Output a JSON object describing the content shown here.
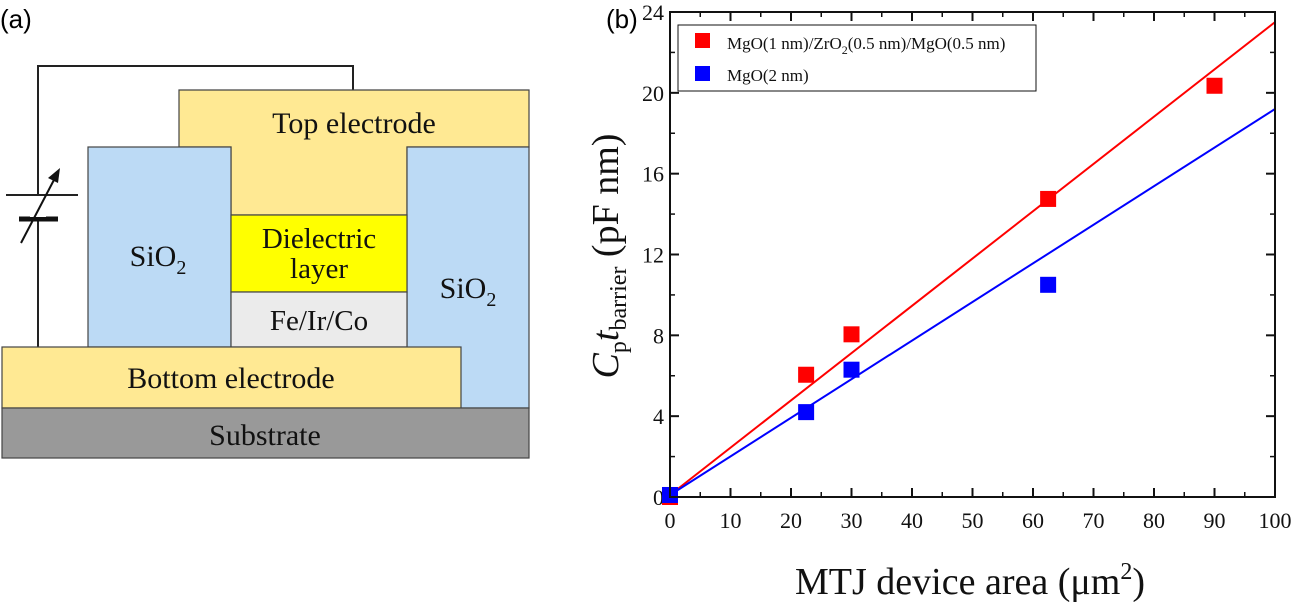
{
  "panels": {
    "a": "(a)",
    "b": "(b)"
  },
  "diagram": {
    "top_electrode": "Top electrode",
    "sio2_left": {
      "base": "SiO",
      "sub": "2"
    },
    "sio2_right": {
      "base": "SiO",
      "sub": "2"
    },
    "dielectric_line1": "Dielectric",
    "dielectric_line2": "layer",
    "ferromagnet": "Fe/Ir/Co",
    "bottom_electrode": "Bottom electrode",
    "substrate": "Substrate",
    "colors": {
      "electrode": "#ffe993",
      "sio2": "#bcdaf5",
      "dielectric": "#ffff00",
      "ferromagnet": "#ebebeb",
      "substrate": "#999999"
    }
  },
  "chart_data": {
    "type": "scatter",
    "xlabel": {
      "main": "MTJ device area (μm",
      "sup": "2",
      "end": ")"
    },
    "ylabel": {
      "c": "C",
      "c_sub": "p",
      "t": "t",
      "t_sub": "barrier",
      "unit": " (pF nm)"
    },
    "xlim": [
      0,
      100
    ],
    "ylim": [
      0,
      24
    ],
    "xticks": [
      0,
      10,
      20,
      30,
      40,
      50,
      60,
      70,
      80,
      90,
      100
    ],
    "yticks": [
      0,
      4,
      8,
      12,
      16,
      20,
      24
    ],
    "grid": false,
    "legend_position": "top-left",
    "series": [
      {
        "name": "MgO(1 nm)/ZrO2(0.5 nm)/MgO(0.5 nm)",
        "legend": {
          "a": "MgO(1 nm)/ZrO",
          "sub": "2",
          "b": "(0.5 nm)/MgO(0.5 nm)"
        },
        "color": "#ff0000",
        "x": [
          0,
          22.5,
          30,
          62.5,
          90
        ],
        "y": [
          0,
          6.05,
          8.05,
          14.75,
          20.35
        ],
        "fit": {
          "x": [
            0,
            100
          ],
          "y": [
            0.1,
            23.5
          ]
        }
      },
      {
        "name": "MgO(2 nm)",
        "legend": {
          "a": "MgO(2 nm)",
          "sub": "",
          "b": ""
        },
        "color": "#0000ff",
        "x": [
          0,
          22.5,
          30,
          62.5
        ],
        "y": [
          0.1,
          4.2,
          6.3,
          10.5
        ],
        "fit": {
          "x": [
            0,
            100
          ],
          "y": [
            0.1,
            19.2
          ]
        }
      }
    ]
  }
}
